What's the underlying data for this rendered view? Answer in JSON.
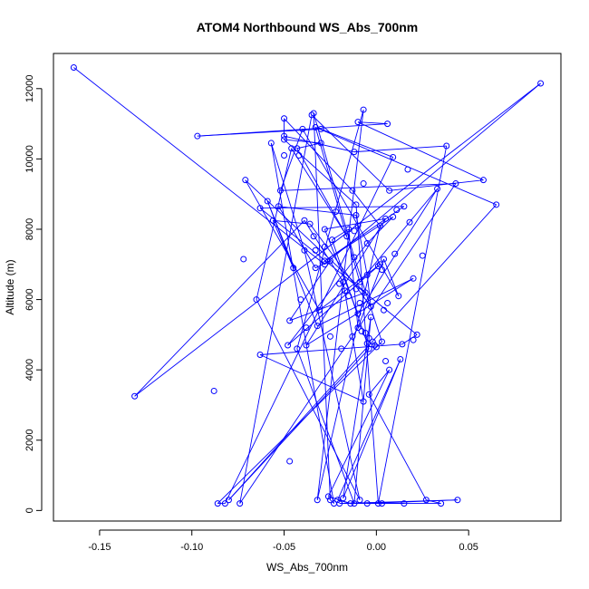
{
  "chart_data": {
    "type": "scatter",
    "title": "ATOM4 Northbound WS_Abs_700nm",
    "xlabel": "WS_Abs_700nm",
    "ylabel": "Altitude (m)",
    "xlim": [
      -0.175,
      0.1
    ],
    "ylim": [
      -300,
      13000
    ],
    "xticks": [
      -0.15,
      -0.1,
      -0.05,
      0.0,
      0.05
    ],
    "xtick_labels": [
      "-0.15",
      "-0.10",
      "-0.05",
      "0.00",
      "0.05"
    ],
    "yticks": [
      0,
      2000,
      4000,
      6000,
      8000,
      10000,
      12000
    ],
    "ytick_labels": [
      "0",
      "2000",
      "4000",
      "6000",
      "8000",
      "10000",
      "12000"
    ],
    "grid": false,
    "line_color": "#0000ff",
    "marker": "open-circle",
    "series": [
      {
        "style": "points-connected",
        "x": [
          -0.164,
          -0.028,
          0.089,
          -0.131,
          -0.039,
          -0.018,
          -0.007,
          -0.063,
          0.014,
          0.022,
          -0.063,
          0.015,
          -0.028,
          0.009,
          -0.005,
          -0.048,
          0.002,
          -0.031,
          -0.071,
          -0.006,
          -0.047,
          -0.025,
          -0.033,
          -0.053,
          -0.011,
          -0.005,
          -0.003,
          -0.036,
          -0.056,
          -0.045,
          -0.059,
          -0.032,
          0.02,
          -0.038,
          0.005,
          -0.028,
          -0.01,
          0.033,
          -0.009,
          -0.033,
          0.065,
          -0.08,
          -0.004,
          -0.024,
          -0.015,
          -0.01,
          0.004,
          0.012,
          -0.04,
          -0.052,
          0.043,
          -0.074,
          -0.035,
          0.007,
          0.058,
          -0.01,
          0.006,
          -0.097,
          -0.03,
          0.009,
          -0.082,
          -0.086,
          0.003,
          -0.012,
          -0.034,
          -0.025,
          -0.023,
          -0.057,
          -0.039,
          -0.009,
          -0.065,
          -0.046,
          -0.016,
          -0.043,
          -0.03,
          -0.05,
          -0.011,
          0.001,
          0.038,
          -0.012,
          -0.05,
          -0.05,
          -0.013,
          0.002,
          -0.032,
          -0.007,
          -0.043,
          -0.012,
          -0.003,
          -0.018,
          0.013,
          -0.021,
          -0.014,
          -0.026,
          0.007,
          -0.004,
          0.027,
          0.035,
          -0.02,
          0.044,
          -0.005,
          0.015,
          0.003
        ],
        "y": [
          12600,
          7000,
          12150,
          3250,
          8250,
          6500,
          3100,
          4430,
          4730,
          5000,
          8600,
          8650,
          7100,
          8350,
          7600,
          4700,
          7000,
          5700,
          9400,
          6200,
          5400,
          7100,
          6900,
          8650,
          8400,
          6700,
          5800,
          8150,
          8250,
          6900,
          8800,
          5250,
          6600,
          4700,
          8300,
          8000,
          5600,
          9150,
          6500,
          10900,
          8700,
          300,
          4600,
          7700,
          8000,
          5200,
          7150,
          6100,
          10850,
          9100,
          9300,
          200,
          11250,
          9100,
          9400,
          11050,
          11000,
          10650,
          10850,
          10050,
          200,
          200,
          4800,
          7200,
          11300,
          300,
          200,
          10450,
          7400,
          300,
          6000,
          10300,
          7800,
          10300,
          10450,
          10550,
          8700,
          200,
          10370,
          10200,
          10650,
          11150,
          9100,
          8100,
          300,
          11400,
          4600,
          200,
          5500,
          350,
          4300,
          300,
          200,
          400,
          4000,
          3300,
          300,
          200,
          200,
          300,
          200,
          200,
          200
        ]
      },
      {
        "style": "points-only",
        "x": [
          -0.088,
          -0.072,
          -0.047,
          -0.042,
          -0.034,
          -0.033,
          -0.022,
          -0.02,
          -0.017,
          -0.015,
          -0.013,
          -0.011,
          -0.008,
          -0.006,
          -0.005,
          -0.004,
          -0.002,
          0.0,
          0.001,
          0.003,
          0.004,
          0.006,
          0.01,
          0.011,
          0.017,
          0.018,
          0.02,
          0.025,
          -0.007,
          -0.012,
          -0.038,
          -0.041,
          -0.025,
          -0.001,
          0.005,
          -0.009,
          -0.019,
          -0.028,
          -0.05,
          -0.01
        ],
        "y": [
          3400,
          7150,
          1400,
          10100,
          7800,
          7400,
          8500,
          6450,
          6250,
          6100,
          4950,
          6300,
          5100,
          5050,
          4750,
          4900,
          4800,
          4650,
          6950,
          6850,
          5700,
          5900,
          7300,
          8550,
          9700,
          8200,
          4850,
          7250,
          9300,
          7950,
          5200,
          6000,
          4950,
          4700,
          4250,
          5900,
          4600,
          7500,
          10100,
          8100
        ]
      }
    ]
  }
}
